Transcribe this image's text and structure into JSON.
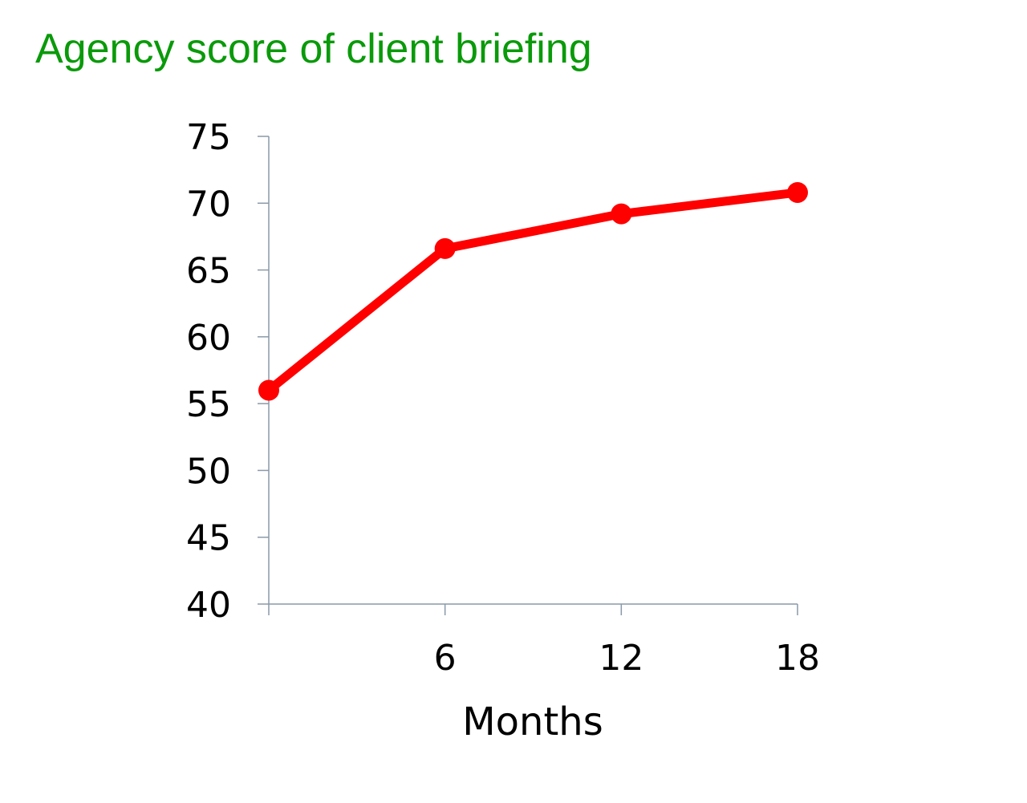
{
  "chart_data": {
    "type": "line",
    "title": "Agency score of client briefing",
    "xlabel": "Months",
    "ylabel": "",
    "x": [
      0,
      6,
      12,
      18
    ],
    "x_tick_labels": [
      "",
      "6",
      "12",
      "18"
    ],
    "xlim": [
      0,
      18
    ],
    "ylim": [
      40,
      75
    ],
    "y_ticks": [
      40,
      45,
      50,
      55,
      60,
      65,
      70,
      75
    ],
    "grid": false,
    "series": [
      {
        "values": [
          56,
          66.6,
          69.2,
          70.8
        ]
      }
    ]
  },
  "colors": {
    "title": "#0a9a0a",
    "series": "#ff0000",
    "axis": "#8a99a8"
  }
}
